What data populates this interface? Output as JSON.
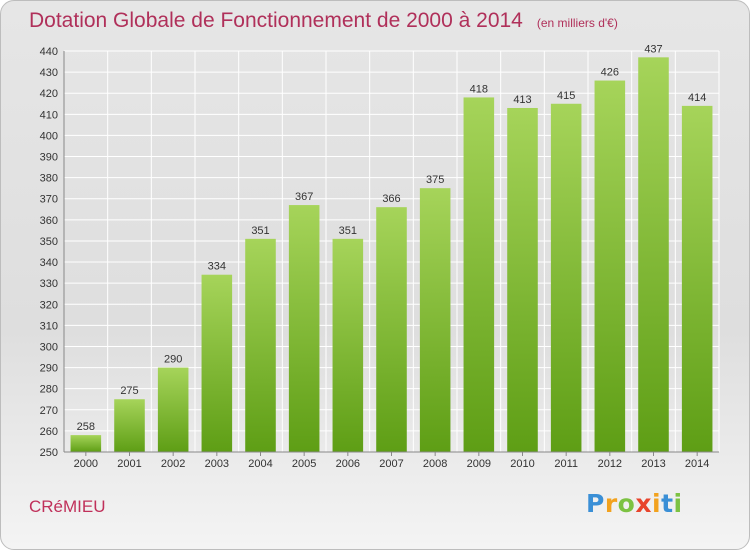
{
  "title": "Dotation Globale de Fonctionnement de 2000 à 2014",
  "subtitle": "(en milliers d'€)",
  "commune": "CRéMIEU",
  "logo": {
    "letters": [
      "P",
      "r",
      "o",
      "x",
      "i",
      "t",
      "i"
    ],
    "colors": [
      "#3a8fd6",
      "#f2a21e",
      "#7cc242",
      "#e8442c",
      "#f2a21e",
      "#3a8fd6",
      "#7cc242"
    ]
  },
  "colors": {
    "bar_top": "#a6d45a",
    "bar_bottom": "#5e9e15",
    "grid": "#ffffff",
    "title": "#b0305a"
  },
  "chart_data": {
    "type": "bar",
    "title": "Dotation Globale de Fonctionnement de 2000 à 2014",
    "subtitle": "(en milliers d'€)",
    "categories": [
      "2000",
      "2001",
      "2002",
      "2003",
      "2004",
      "2005",
      "2006",
      "2007",
      "2008",
      "2009",
      "2010",
      "2011",
      "2012",
      "2013",
      "2014"
    ],
    "values": [
      258,
      275,
      290,
      334,
      351,
      367,
      351,
      366,
      375,
      418,
      413,
      415,
      426,
      437,
      414
    ],
    "ylim": [
      250,
      440
    ],
    "yticks": [
      250,
      260,
      270,
      280,
      290,
      300,
      310,
      320,
      330,
      340,
      350,
      360,
      370,
      380,
      390,
      400,
      410,
      420,
      430,
      440
    ],
    "grid": true,
    "data_labels": true
  }
}
